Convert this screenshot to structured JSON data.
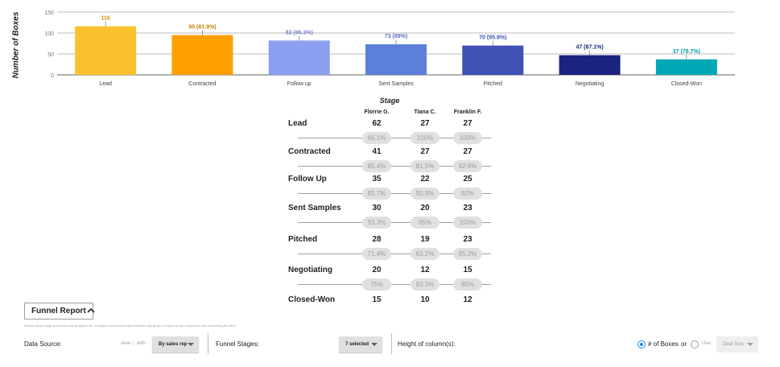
{
  "chart_data": {
    "type": "bar",
    "categories": [
      "Lead",
      "Contracted",
      "Follow up",
      "Sent Samples",
      "Pitched",
      "Negotiating",
      "Closed-Won"
    ],
    "values": [
      116,
      95,
      82,
      73,
      70,
      47,
      37
    ],
    "value_labels": [
      "116",
      "95 (81.9%)",
      "82 (86.3%)",
      "73 (89%)",
      "70 (95.9%)",
      "47 (67.1%)",
      "37 (78.7%)"
    ],
    "colors": [
      "#fbc02d",
      "#ffa000",
      "#8c9eef",
      "#5c7fd9",
      "#3f51b5",
      "#1a237e",
      "#00a8b5"
    ],
    "label_colors": [
      "#c89400",
      "#c88000",
      "#7986cb",
      "#5c6bc0",
      "#3f51b5",
      "#1a237e",
      "#00a0b0"
    ],
    "ylabel": "Number of Boxes",
    "ylim": [
      0,
      150
    ],
    "yticks": [
      0,
      50,
      100,
      150
    ],
    "grid": true
  },
  "funnel": {
    "title": "Stage",
    "reps": [
      "Florrie G.",
      "Tiana C.",
      "Franklin F."
    ],
    "rows": [
      {
        "stage": "Lead",
        "values": [
          "62",
          "27",
          "27"
        ]
      },
      {
        "stage": "Contracted",
        "values": [
          "41",
          "27",
          "27"
        ]
      },
      {
        "stage": "Follow Up",
        "values": [
          "35",
          "22",
          "25"
        ]
      },
      {
        "stage": "Sent Samples",
        "values": [
          "30",
          "20",
          "23"
        ]
      },
      {
        "stage": "Pitched",
        "values": [
          "28",
          "19",
          "23"
        ]
      },
      {
        "stage": "Negotiating",
        "values": [
          "20",
          "12",
          "15"
        ]
      },
      {
        "stage": "Closed-Won",
        "values": [
          "15",
          "10",
          "12"
        ]
      }
    ],
    "rates": [
      [
        "66.1%",
        "100%",
        "100%"
      ],
      [
        "85.4%",
        "81.5%",
        "92.6%"
      ],
      [
        "85.7%",
        "90.9%",
        "92%"
      ],
      [
        "93.3%",
        "95%",
        "100%"
      ],
      [
        "71.4%",
        "63.2%",
        "65.2%"
      ],
      [
        "75%",
        "83.3%",
        "80%"
      ]
    ]
  },
  "report": {
    "button_label": "Funnel Report",
    "description": "Shows which stage your boxes are dropping off. Compare conversions rates between any group of boxes to see which ones are performing the best.",
    "chevron_icon": "chevron-up-icon"
  },
  "controls": {
    "data_source_label": "Data Source:",
    "view_label": "view",
    "with_label": "with",
    "data_source_value": "By sales rep",
    "funnel_stages_label": "Funnel Stages:",
    "funnel_stages_value": "7 selected",
    "height_label": "Height of column(s):",
    "boxes_option": "# of Boxes",
    "or_label": "or",
    "use_label": "Use",
    "deal_size_value": "Deal Size",
    "selected_height": "boxes",
    "accent_color": "#1e88e5"
  }
}
